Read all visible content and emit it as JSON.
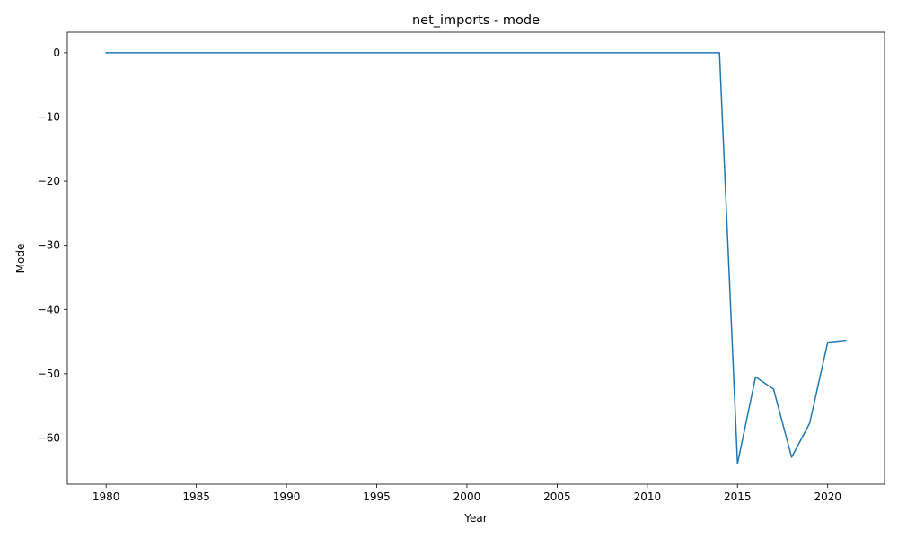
{
  "chart_data": {
    "type": "line",
    "title": "net_imports - mode",
    "xlabel": "Year",
    "ylabel": "Mode",
    "xlim": [
      1977.85,
      2023.15
    ],
    "ylim": [
      -67.2,
      3.2
    ],
    "x_ticks": [
      1980,
      1985,
      1990,
      1995,
      2000,
      2005,
      2010,
      2015,
      2020
    ],
    "y_ticks": [
      0,
      -10,
      -20,
      -30,
      -40,
      -50,
      -60
    ],
    "grid": false,
    "legend": "none",
    "series": [
      {
        "color": "#1f77b4",
        "x": [
          1980,
          1981,
          1982,
          1983,
          1984,
          1985,
          1986,
          1987,
          1988,
          1989,
          1990,
          1991,
          1992,
          1993,
          1994,
          1995,
          1996,
          1997,
          1998,
          1999,
          2000,
          2001,
          2002,
          2003,
          2004,
          2005,
          2006,
          2007,
          2008,
          2009,
          2010,
          2011,
          2012,
          2013,
          2014,
          2015,
          2016,
          2017,
          2018,
          2019,
          2020,
          2021
        ],
        "values": [
          0,
          0,
          0,
          0,
          0,
          0,
          0,
          0,
          0,
          0,
          0,
          0,
          0,
          0,
          0,
          0,
          0,
          0,
          0,
          0,
          0,
          0,
          0,
          0,
          0,
          0,
          0,
          0,
          0,
          0,
          0,
          0,
          0,
          0,
          0,
          -64.0,
          -50.5,
          -52.4,
          -63.0,
          -57.7,
          -45.1,
          -44.8
        ]
      }
    ]
  }
}
